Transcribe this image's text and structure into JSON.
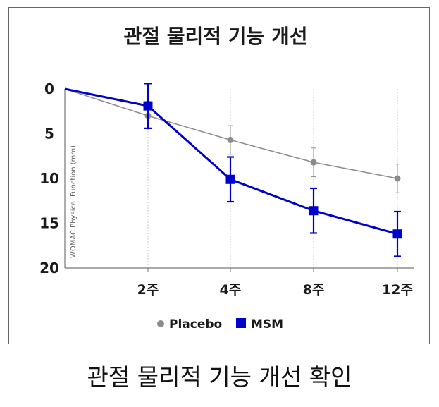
{
  "chart_data": {
    "type": "line",
    "title": "관절 물리적 기능 개선",
    "ylabel": "WOMAC Physical Function (mm)",
    "xlabel": "",
    "x": [
      0,
      2,
      4,
      8,
      12
    ],
    "x_tick_labels": [
      "2주",
      "4주",
      "8주",
      "12주"
    ],
    "y_ticks": [
      0,
      5,
      10,
      15,
      20
    ],
    "ylim": [
      0,
      20
    ],
    "y_inverted": true,
    "grid": "vertical dotted gridlines at each x tick",
    "legend_position": "bottom-center",
    "series": [
      {
        "name": "Placebo",
        "color": "#8c8c8c",
        "marker": "circle",
        "values": [
          0,
          3.0,
          5.7,
          8.2,
          10.0
        ],
        "error": [
          0,
          1.6,
          1.6,
          1.6,
          1.6
        ]
      },
      {
        "name": "MSM",
        "color": "#0000cc",
        "marker": "square",
        "values": [
          0,
          1.9,
          10.1,
          13.6,
          16.2
        ],
        "error": [
          0,
          2.5,
          2.5,
          2.5,
          2.5
        ]
      }
    ]
  },
  "caption": "관절 물리적 기능 개선 확인"
}
